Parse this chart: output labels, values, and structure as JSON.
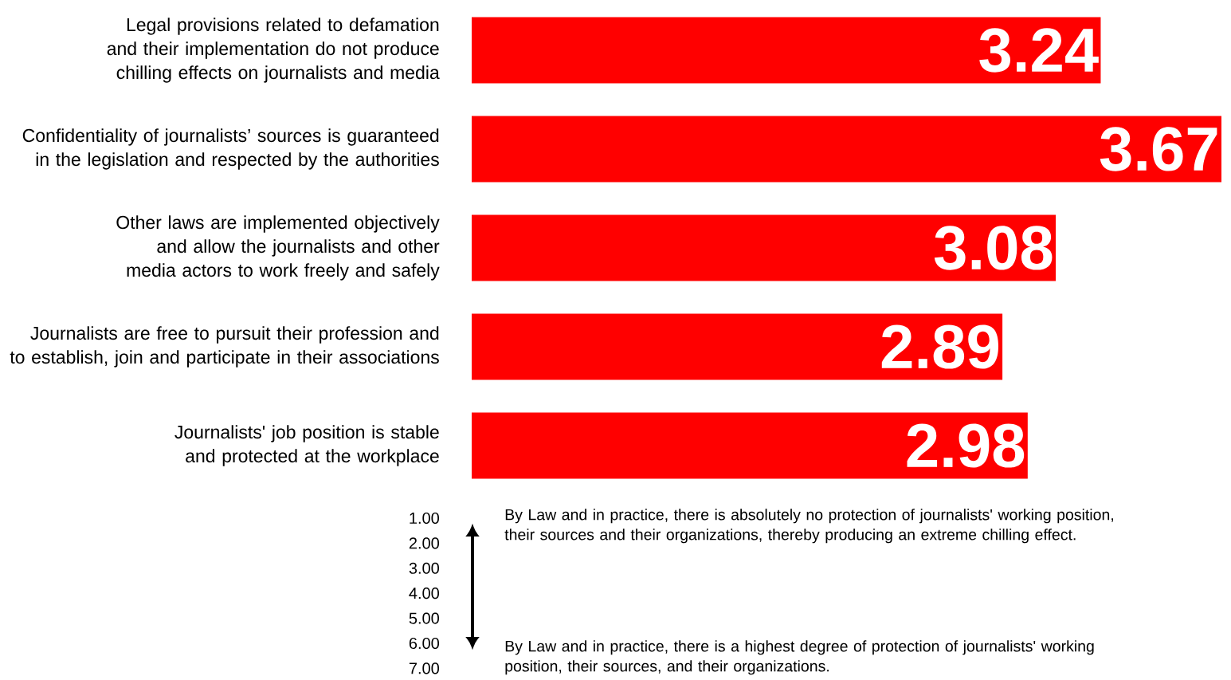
{
  "chart_data": {
    "type": "bar",
    "orientation": "horizontal",
    "categories": [
      "Legal provisions related to defamation and their implementation do not produce chilling effects on journalists and media",
      "Confidentiality of journalists’ sources is guaranteed in the legislation and respected by the authorities",
      "Other laws are implemented objectively and allow the journalists and other media actors to work freely and safely",
      "Journalists are free to pursuit their profession and to establish, join and participate in their associations",
      "Journalists' job position is stable and protected at the workplace"
    ],
    "values": [
      3.24,
      3.67,
      3.08,
      2.89,
      2.98
    ],
    "color": "#ff0000",
    "xlim": [
      1,
      3.67
    ],
    "data_labels": true,
    "annotations": [
      "1.00",
      "2.00",
      "3.00",
      "4.00",
      "5.00",
      "6.00",
      "7.00",
      "By Law and in practice, there is absolutely no protection of journalists' working position, their sources and their organizations, thereby producing an extreme chilling effect.",
      "By Law and in practice, there is a highest degree of protection of journalists' working position, their sources, and their organizations."
    ]
  }
}
